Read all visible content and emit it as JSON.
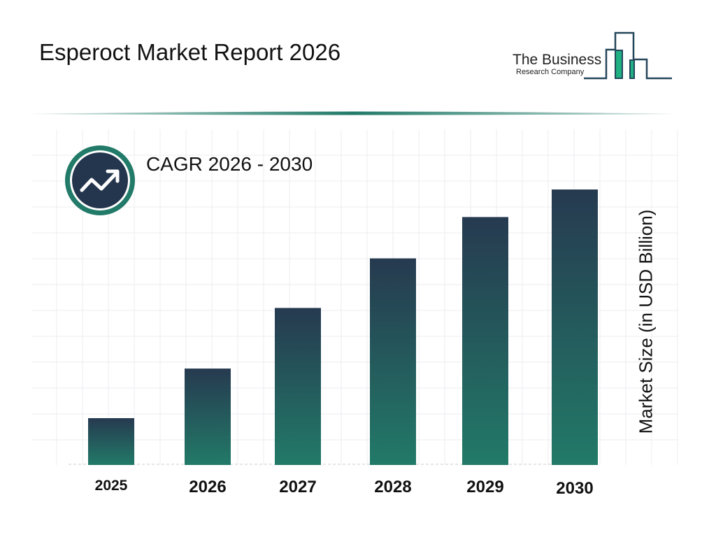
{
  "header": {
    "title": "Esperoct Market Report 2026"
  },
  "logo": {
    "line1": "The Business",
    "line2": "Research Company"
  },
  "cagr": {
    "label": "CAGR 2026 - 2030",
    "icon": "trending-up-icon"
  },
  "colors": {
    "bar_top": "#263a50",
    "bar_bottom": "#227a68",
    "accent": "#227a68",
    "icon_bg": "#24364d"
  },
  "chart_data": {
    "type": "bar",
    "title": "",
    "categories": [
      "2025",
      "2026",
      "2027",
      "2028",
      "2029",
      "2030"
    ],
    "values": [
      0.17,
      0.35,
      0.57,
      0.75,
      0.9,
      1.0
    ],
    "xlabel": "",
    "ylabel": "Market Size (in USD Billion)",
    "ylim": [
      0,
      1.2
    ],
    "grid": true,
    "legend": "none"
  }
}
